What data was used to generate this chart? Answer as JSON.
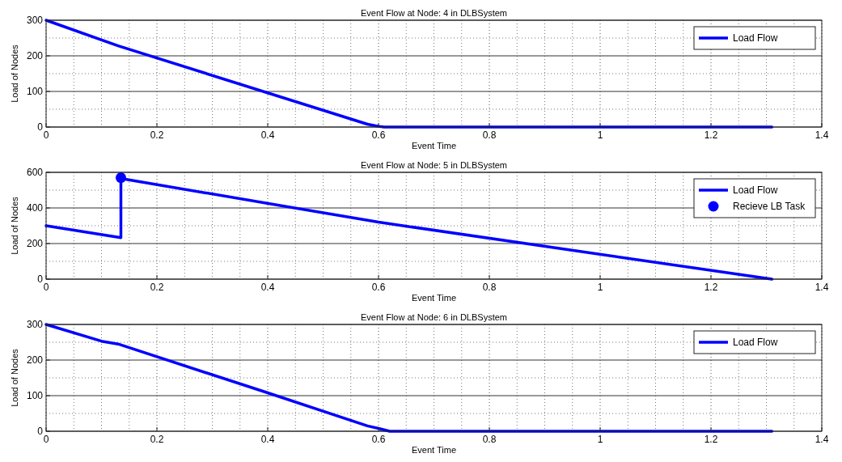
{
  "chart_data": [
    {
      "type": "line",
      "title": "Event Flow at Node: 4 in DLBSystem",
      "xlabel": "Event Time",
      "ylabel": "Load of Nodes",
      "xlim": [
        0,
        1.4
      ],
      "xticks": [
        0,
        0.2,
        0.4,
        0.6,
        0.8,
        1,
        1.2,
        1.4
      ],
      "ylim": [
        0,
        300
      ],
      "yticks": [
        0,
        100,
        200,
        300
      ],
      "grid": true,
      "legend": "top right",
      "series": [
        {
          "name": "Load Flow",
          "color": "#0000ff",
          "x": [
            0,
            0.13,
            0.58,
            0.6,
            0.61,
            1.31
          ],
          "values": [
            300,
            228,
            8,
            2,
            0,
            0
          ]
        }
      ]
    },
    {
      "type": "line",
      "title": "Event Flow at Node: 5 in DLBSystem",
      "xlabel": "Event Time",
      "ylabel": "Load of Nodes",
      "xlim": [
        0,
        1.4
      ],
      "xticks": [
        0,
        0.2,
        0.4,
        0.6,
        0.8,
        1,
        1.2,
        1.4
      ],
      "ylim": [
        0,
        600
      ],
      "yticks": [
        0,
        200,
        400,
        600
      ],
      "grid": true,
      "legend": "top right",
      "series": [
        {
          "name": "Load Flow",
          "color": "#0000ff",
          "x": [
            0,
            0.135,
            0.135,
            0.145,
            0.6,
            1.31
          ],
          "values": [
            300,
            233,
            570,
            560,
            320,
            0
          ]
        },
        {
          "name": "Recieve LB Task",
          "type": "scatter",
          "marker": "circle",
          "color": "#0000ff",
          "x": [
            0.135
          ],
          "values": [
            570
          ]
        }
      ]
    },
    {
      "type": "line",
      "title": "Event Flow at Node: 6 in DLBSystem",
      "xlabel": "Event Time",
      "ylabel": "Load of Nodes",
      "xlim": [
        0,
        1.4
      ],
      "xticks": [
        0,
        0.2,
        0.4,
        0.6,
        0.8,
        1,
        1.2,
        1.4
      ],
      "ylim": [
        0,
        300
      ],
      "yticks": [
        0,
        100,
        200,
        300
      ],
      "grid": true,
      "legend": "top right",
      "series": [
        {
          "name": "Load Flow",
          "color": "#0000ff",
          "x": [
            0,
            0.1,
            0.13,
            0.4,
            0.58,
            0.6,
            0.62,
            1.31
          ],
          "values": [
            300,
            253,
            245,
            108,
            15,
            8,
            0,
            0
          ]
        }
      ]
    }
  ]
}
